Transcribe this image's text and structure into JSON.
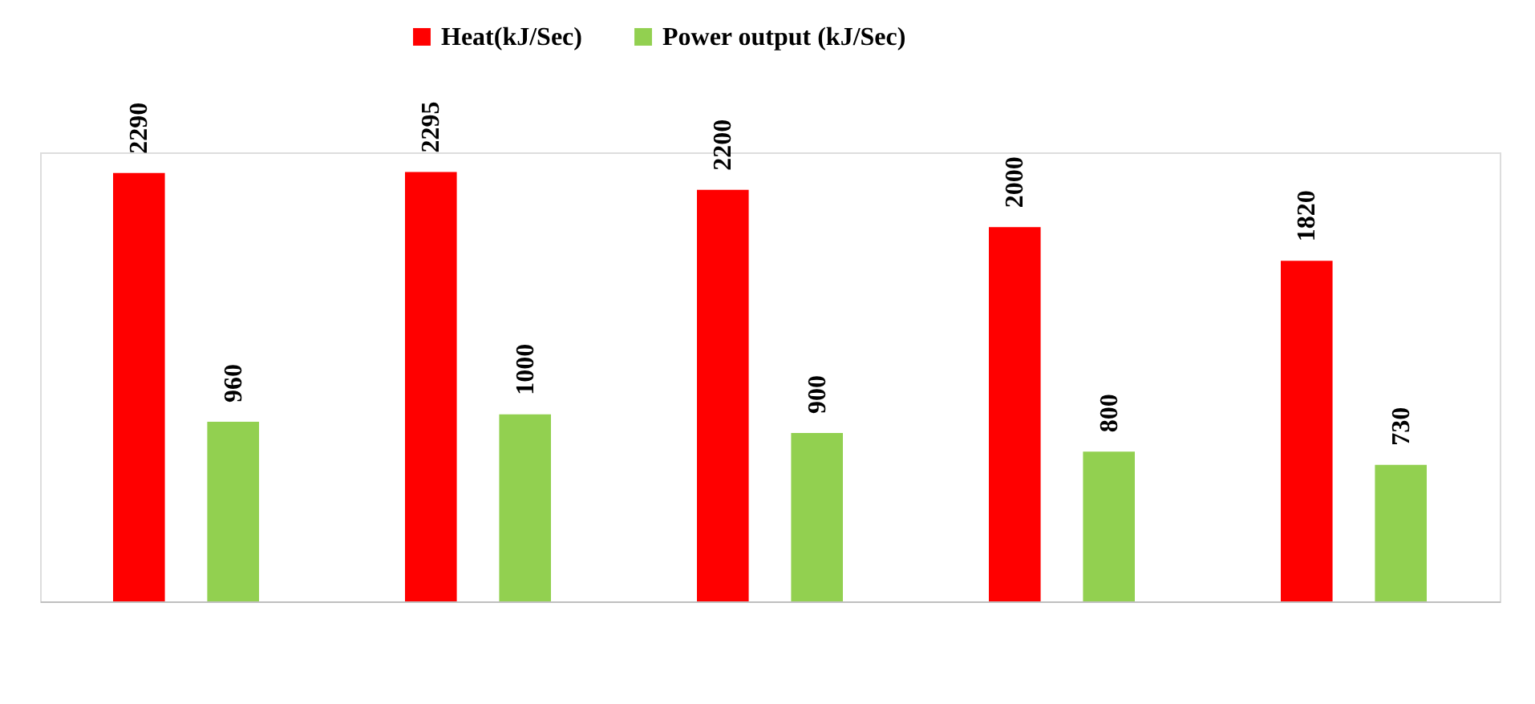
{
  "chart_data": {
    "type": "bar",
    "categories": [
      null,
      null,
      null,
      null,
      null
    ],
    "series": [
      {
        "name": "Heat(kJ/Sec)",
        "color": "#ff0000",
        "values": [
          2290,
          2295,
          2200,
          2000,
          1820
        ]
      },
      {
        "name": "Power output (kJ/Sec)",
        "color": "#92d050",
        "values": [
          960,
          1000,
          900,
          800,
          730
        ]
      }
    ],
    "data_labels": true,
    "legend": "top",
    "grid": false,
    "tick_labels": false
  }
}
